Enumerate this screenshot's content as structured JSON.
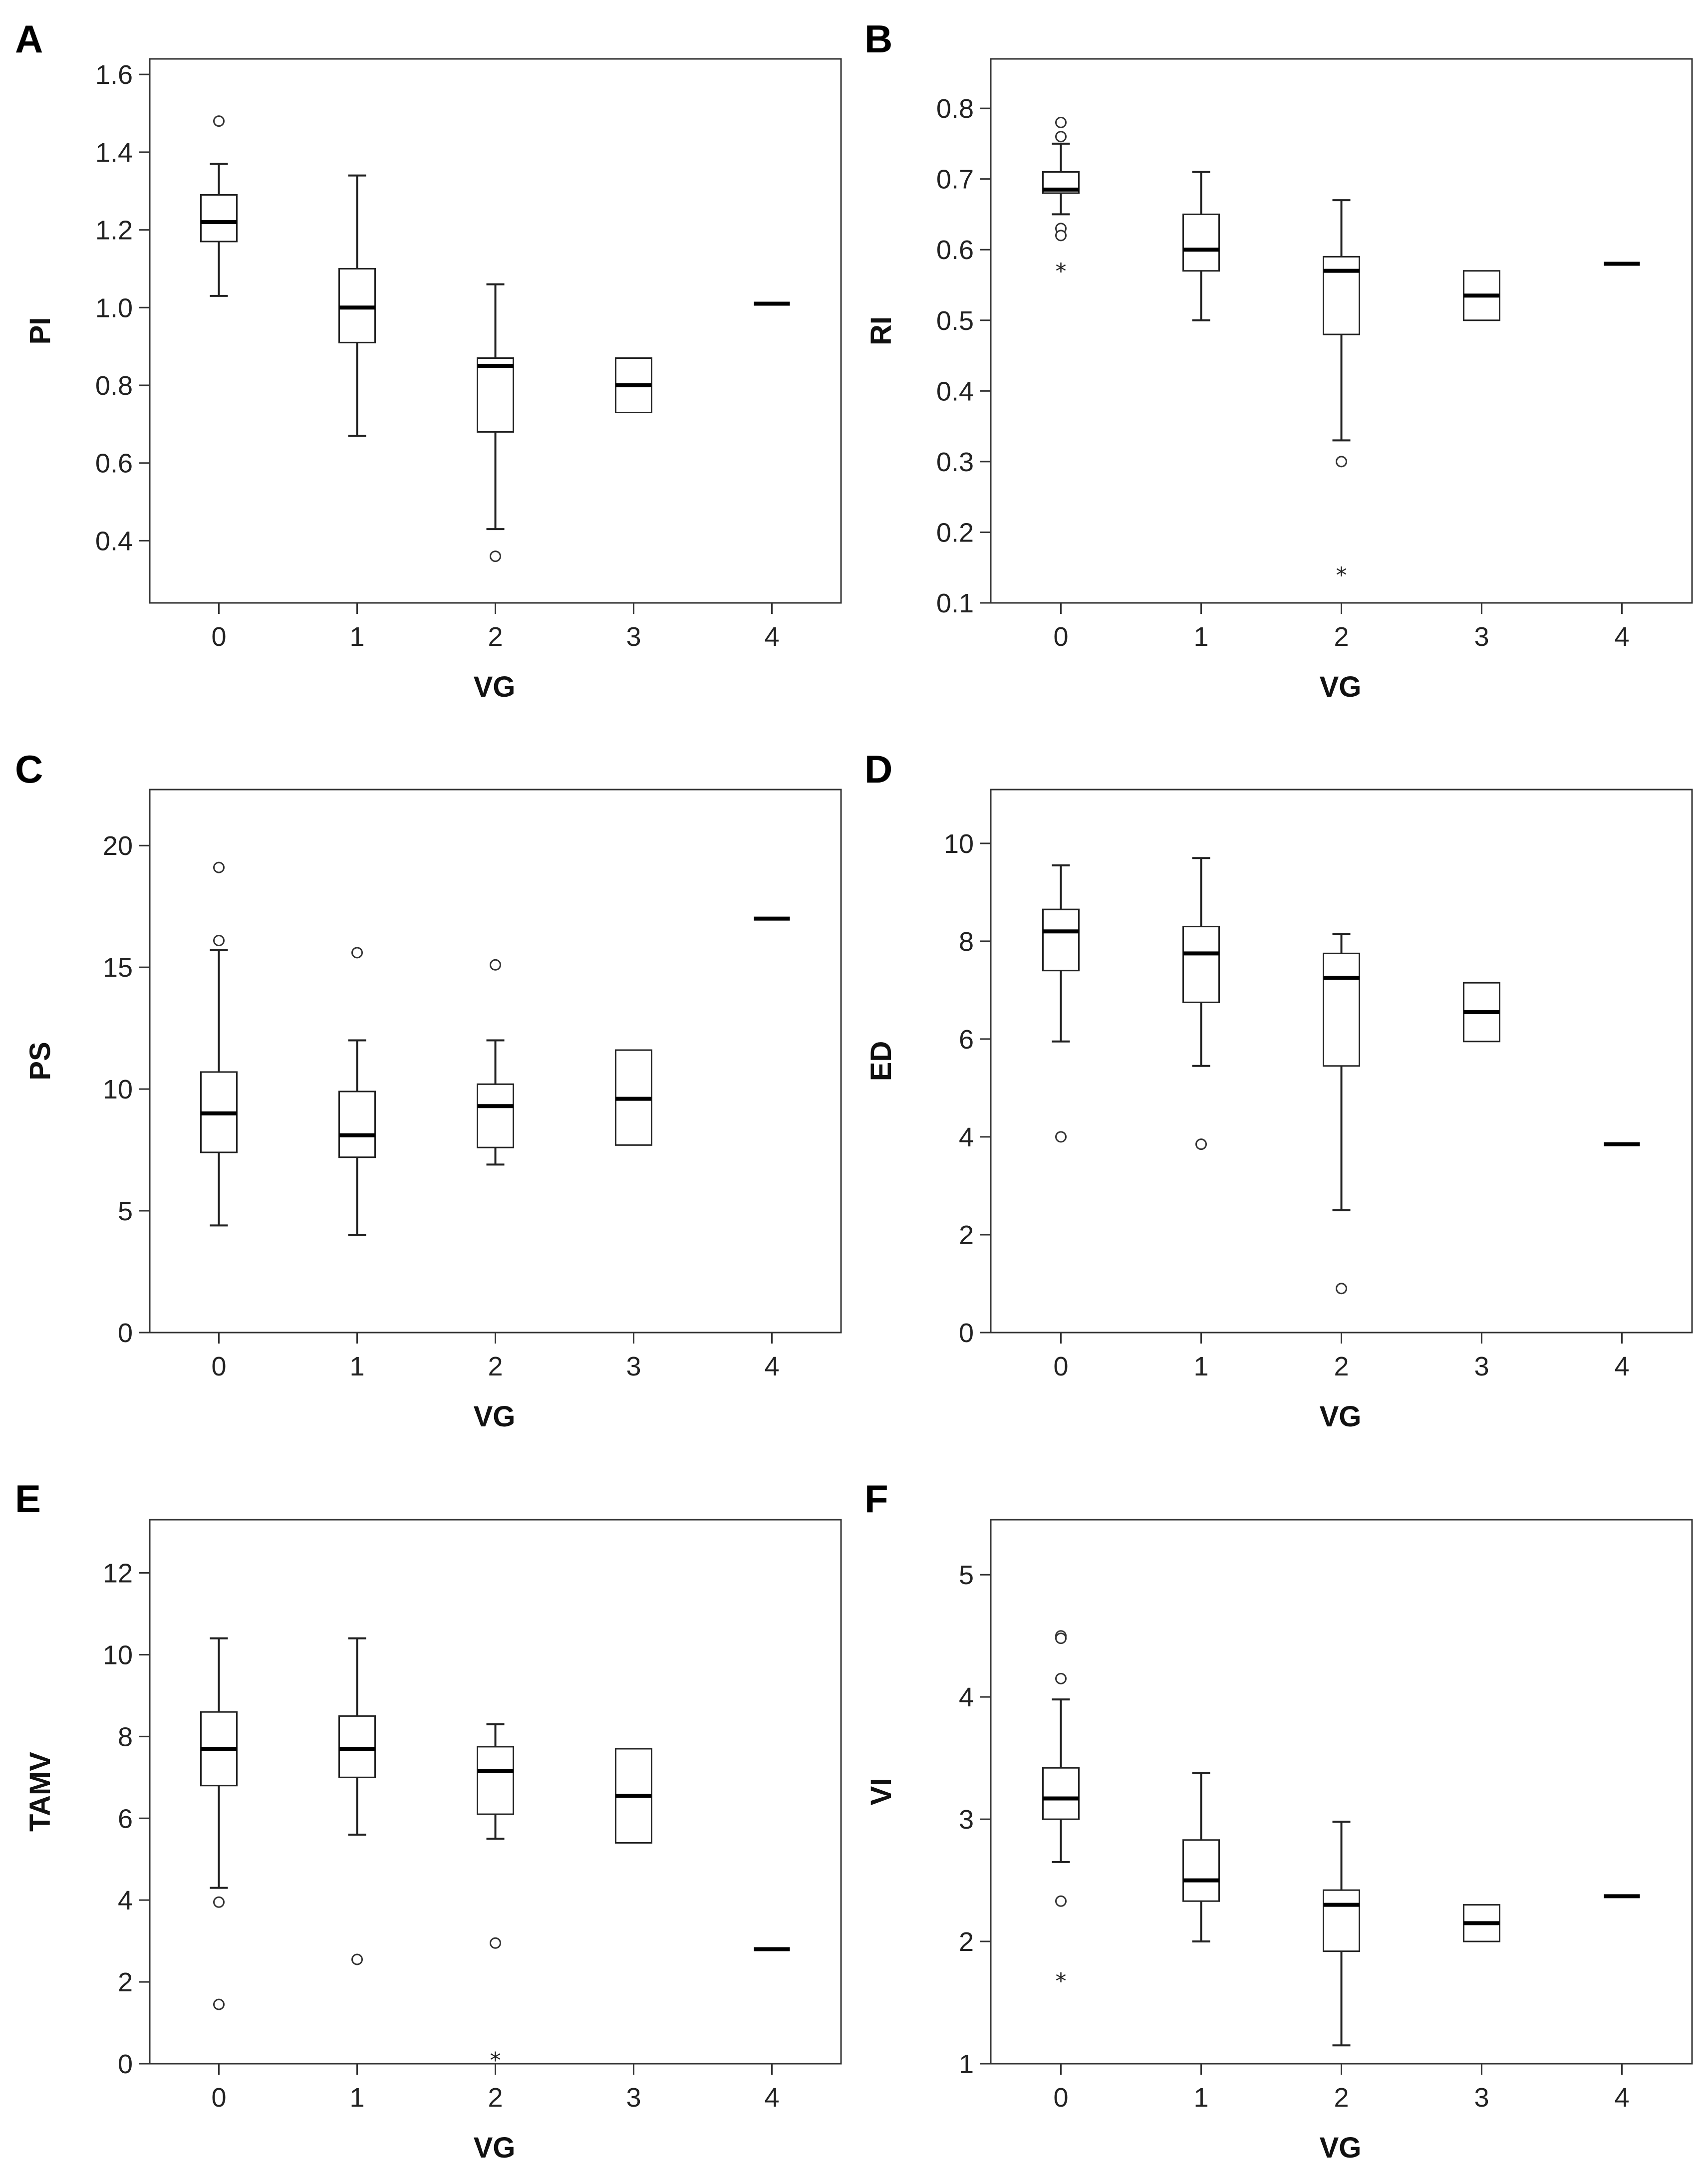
{
  "figure": {
    "type": "box-plot panel figure"
  },
  "chart_data": [
    {
      "type": "box",
      "panel": "A",
      "xlabel": "VG",
      "ylabel": "PI",
      "categories": [
        "0",
        "1",
        "2",
        "3",
        "4"
      ],
      "ylim": [
        0.24,
        1.64
      ],
      "yticks": [
        0.4,
        0.6,
        0.8,
        1.0,
        1.2,
        1.4,
        1.6
      ],
      "ytick_labels": [
        "0.4",
        "0.6",
        "0.8",
        "1.0",
        "1.2",
        "1.4",
        "1.6"
      ],
      "groups": [
        {
          "category": "0",
          "min": 1.03,
          "q1": 1.17,
          "median": 1.22,
          "q3": 1.29,
          "max": 1.37,
          "outliers": [
            1.48
          ],
          "extremes": []
        },
        {
          "category": "1",
          "min": 0.67,
          "q1": 0.91,
          "median": 1.0,
          "q3": 1.1,
          "max": 1.34,
          "outliers": [],
          "extremes": []
        },
        {
          "category": "2",
          "min": 0.43,
          "q1": 0.68,
          "median": 0.85,
          "q3": 0.87,
          "max": 1.06,
          "outliers": [
            0.36
          ],
          "extremes": []
        },
        {
          "category": "3",
          "min": 0.73,
          "q1": 0.73,
          "median": 0.8,
          "q3": 0.87,
          "max": 0.87,
          "outliers": [],
          "extremes": []
        },
        {
          "category": "4",
          "min": 1.01,
          "q1": 1.01,
          "median": 1.01,
          "q3": 1.01,
          "max": 1.01,
          "outliers": [],
          "extremes": []
        }
      ]
    },
    {
      "type": "box",
      "panel": "B",
      "xlabel": "VG",
      "ylabel": "RI",
      "categories": [
        "0",
        "1",
        "2",
        "3",
        "4"
      ],
      "ylim": [
        0.1,
        0.87
      ],
      "yticks": [
        0.1,
        0.2,
        0.3,
        0.4,
        0.5,
        0.6,
        0.7,
        0.8
      ],
      "ytick_labels": [
        "0.1",
        "0.2",
        "0.3",
        "0.4",
        "0.5",
        "0.6",
        "0.7",
        "0.8"
      ],
      "groups": [
        {
          "category": "0",
          "min": 0.65,
          "q1": 0.68,
          "median": 0.685,
          "q3": 0.71,
          "max": 0.75,
          "outliers": [
            0.78,
            0.76,
            0.63,
            0.62
          ],
          "extremes": [
            0.57
          ]
        },
        {
          "category": "1",
          "min": 0.5,
          "q1": 0.57,
          "median": 0.6,
          "q3": 0.65,
          "max": 0.71,
          "outliers": [],
          "extremes": []
        },
        {
          "category": "2",
          "min": 0.33,
          "q1": 0.48,
          "median": 0.57,
          "q3": 0.59,
          "max": 0.67,
          "outliers": [
            0.3
          ],
          "extremes": [
            0.14
          ]
        },
        {
          "category": "3",
          "min": 0.5,
          "q1": 0.5,
          "median": 0.535,
          "q3": 0.57,
          "max": 0.57,
          "outliers": [],
          "extremes": []
        },
        {
          "category": "4",
          "min": 0.58,
          "q1": 0.58,
          "median": 0.58,
          "q3": 0.58,
          "max": 0.58,
          "outliers": [],
          "extremes": []
        }
      ]
    },
    {
      "type": "box",
      "panel": "C",
      "xlabel": "VG",
      "ylabel": "PS",
      "categories": [
        "0",
        "1",
        "2",
        "3",
        "4"
      ],
      "ylim": [
        0,
        22.3
      ],
      "yticks": [
        0,
        5,
        10,
        15,
        20
      ],
      "ytick_labels": [
        "0",
        "5",
        "10",
        "15",
        "20"
      ],
      "groups": [
        {
          "category": "0",
          "min": 4.4,
          "q1": 7.4,
          "median": 9.0,
          "q3": 10.7,
          "max": 15.7,
          "outliers": [
            19.1,
            16.1
          ],
          "extremes": []
        },
        {
          "category": "1",
          "min": 4.0,
          "q1": 7.2,
          "median": 8.1,
          "q3": 9.9,
          "max": 12.0,
          "outliers": [
            15.6
          ],
          "extremes": []
        },
        {
          "category": "2",
          "min": 6.9,
          "q1": 7.6,
          "median": 9.3,
          "q3": 10.2,
          "max": 12.0,
          "outliers": [
            15.1
          ],
          "extremes": []
        },
        {
          "category": "3",
          "min": 7.7,
          "q1": 7.7,
          "median": 9.6,
          "q3": 11.6,
          "max": 11.6,
          "outliers": [],
          "extremes": []
        },
        {
          "category": "4",
          "min": 17.0,
          "q1": 17.0,
          "median": 17.0,
          "q3": 17.0,
          "max": 17.0,
          "outliers": [],
          "extremes": []
        }
      ]
    },
    {
      "type": "box",
      "panel": "D",
      "xlabel": "VG",
      "ylabel": "ED",
      "categories": [
        "0",
        "1",
        "2",
        "3",
        "4"
      ],
      "ylim": [
        0,
        11.1
      ],
      "yticks": [
        0,
        2,
        4,
        6,
        8,
        10
      ],
      "ytick_labels": [
        "0",
        "2",
        "4",
        "6",
        "8",
        "10"
      ],
      "groups": [
        {
          "category": "0",
          "min": 5.95,
          "q1": 7.4,
          "median": 8.2,
          "q3": 8.65,
          "max": 9.55,
          "outliers": [
            4.0
          ],
          "extremes": []
        },
        {
          "category": "1",
          "min": 5.45,
          "q1": 6.75,
          "median": 7.75,
          "q3": 8.3,
          "max": 9.7,
          "outliers": [
            3.85
          ],
          "extremes": []
        },
        {
          "category": "2",
          "min": 2.5,
          "q1": 5.45,
          "median": 7.25,
          "q3": 7.75,
          "max": 8.15,
          "outliers": [
            0.9
          ],
          "extremes": []
        },
        {
          "category": "3",
          "min": 5.95,
          "q1": 5.95,
          "median": 6.55,
          "q3": 7.15,
          "max": 7.15,
          "outliers": [],
          "extremes": []
        },
        {
          "category": "4",
          "min": 3.85,
          "q1": 3.85,
          "median": 3.85,
          "q3": 3.85,
          "max": 3.85,
          "outliers": [],
          "extremes": []
        }
      ]
    },
    {
      "type": "box",
      "panel": "E",
      "xlabel": "VG",
      "ylabel": "TAMV",
      "categories": [
        "0",
        "1",
        "2",
        "3",
        "4"
      ],
      "ylim": [
        0,
        13.3
      ],
      "yticks": [
        0,
        2,
        4,
        6,
        8,
        10,
        12
      ],
      "ytick_labels": [
        "0",
        "2",
        "4",
        "6",
        "8",
        "10",
        "12"
      ],
      "groups": [
        {
          "category": "0",
          "min": 4.3,
          "q1": 6.8,
          "median": 7.7,
          "q3": 8.6,
          "max": 10.4,
          "outliers": [
            3.95,
            1.45
          ],
          "extremes": []
        },
        {
          "category": "1",
          "min": 5.6,
          "q1": 7.0,
          "median": 7.7,
          "q3": 8.5,
          "max": 10.4,
          "outliers": [
            2.55
          ],
          "extremes": []
        },
        {
          "category": "2",
          "min": 5.5,
          "q1": 6.1,
          "median": 7.15,
          "q3": 7.75,
          "max": 8.3,
          "outliers": [
            2.95
          ],
          "extremes": [
            0.1
          ]
        },
        {
          "category": "3",
          "min": 5.4,
          "q1": 5.4,
          "median": 6.55,
          "q3": 7.7,
          "max": 7.7,
          "outliers": [],
          "extremes": []
        },
        {
          "category": "4",
          "min": 2.8,
          "q1": 2.8,
          "median": 2.8,
          "q3": 2.8,
          "max": 2.8,
          "outliers": [],
          "extremes": []
        }
      ]
    },
    {
      "type": "box",
      "panel": "F",
      "xlabel": "VG",
      "ylabel": "VI",
      "categories": [
        "0",
        "1",
        "2",
        "3",
        "4"
      ],
      "ylim": [
        1,
        5.45
      ],
      "yticks": [
        1,
        2,
        3,
        4,
        5
      ],
      "ytick_labels": [
        "1",
        "2",
        "3",
        "4",
        "5"
      ],
      "groups": [
        {
          "category": "0",
          "min": 2.65,
          "q1": 3.0,
          "median": 3.17,
          "q3": 3.42,
          "max": 3.98,
          "outliers": [
            4.5,
            4.48,
            4.15,
            2.33
          ],
          "extremes": [
            1.68
          ]
        },
        {
          "category": "1",
          "min": 2.0,
          "q1": 2.33,
          "median": 2.5,
          "q3": 2.83,
          "max": 3.38,
          "outliers": [],
          "extremes": []
        },
        {
          "category": "2",
          "min": 1.15,
          "q1": 1.92,
          "median": 2.3,
          "q3": 2.42,
          "max": 2.98,
          "outliers": [],
          "extremes": []
        },
        {
          "category": "3",
          "min": 2.0,
          "q1": 2.0,
          "median": 2.15,
          "q3": 2.3,
          "max": 2.3,
          "outliers": [],
          "extremes": []
        },
        {
          "category": "4",
          "min": 2.37,
          "q1": 2.37,
          "median": 2.37,
          "q3": 2.37,
          "max": 2.37,
          "outliers": [],
          "extremes": []
        }
      ]
    }
  ]
}
